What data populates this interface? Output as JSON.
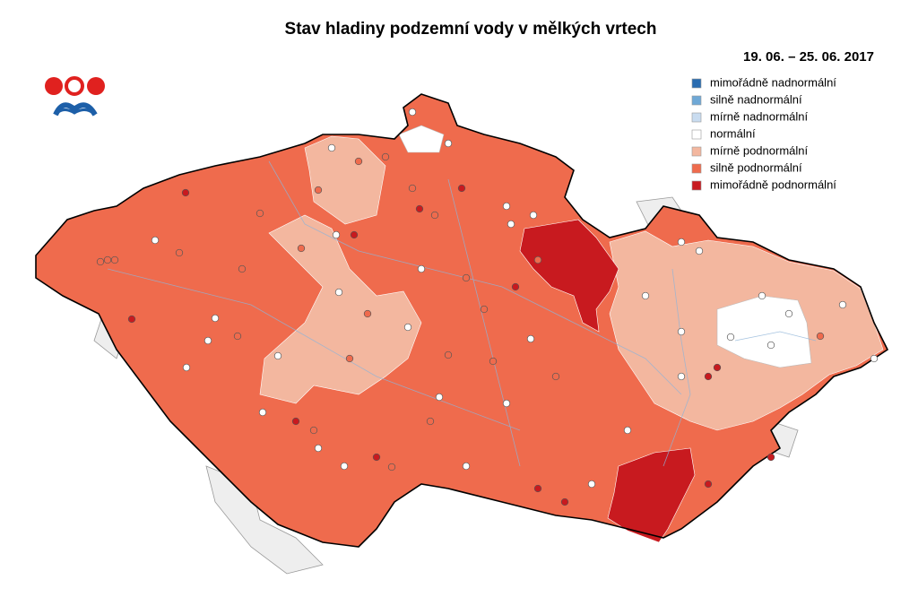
{
  "title": "Stav hladiny podzemní vody v mělkých vrtech",
  "period": "19. 06. – 25. 06. 2017",
  "legend": {
    "items": [
      {
        "label": "mimořádně nadnormální",
        "color": "#2a6cb0"
      },
      {
        "label": "silně nadnormální",
        "color": "#6fa8d6"
      },
      {
        "label": "mírně nadnormální",
        "color": "#c9dcf0"
      },
      {
        "label": "normální",
        "color": "#ffffff"
      },
      {
        "label": "mírně podnormální",
        "color": "#f3b79f"
      },
      {
        "label": "silně podnormální",
        "color": "#ef6b4d"
      },
      {
        "label": "mimořádně podnormální",
        "color": "#c81a1f"
      }
    ]
  }
}
